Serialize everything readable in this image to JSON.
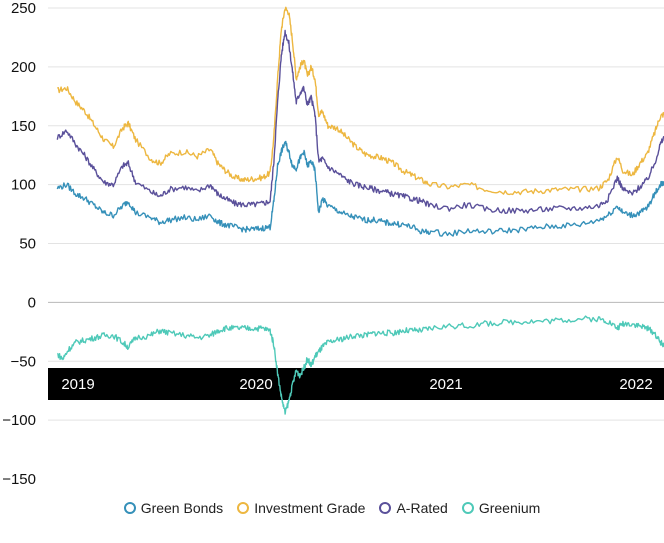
{
  "chart_data": {
    "type": "line",
    "title": "",
    "xlabel": "",
    "ylabel": "",
    "ylim": [
      -150,
      250
    ],
    "yticks": [
      "250",
      "200",
      "150",
      "100",
      "50",
      "0",
      "−50",
      "−100",
      "−150"
    ],
    "xticks": [
      {
        "label": "2019",
        "x": 2019.0
      },
      {
        "label": "2020",
        "x": 2020.0
      },
      {
        "label": "2021",
        "x": 2021.0
      },
      {
        "label": "2022",
        "x": 2022.0
      }
    ],
    "xlim": [
      2018.95,
      2022.25
    ],
    "grid": "horizontal",
    "legend_position": "bottom",
    "series": [
      {
        "name": "Investment Grade",
        "color": "#EDB740",
        "points": [
          [
            2019.0,
            180
          ],
          [
            2019.05,
            182
          ],
          [
            2019.1,
            170
          ],
          [
            2019.15,
            162
          ],
          [
            2019.2,
            150
          ],
          [
            2019.25,
            138
          ],
          [
            2019.3,
            132
          ],
          [
            2019.35,
            148
          ],
          [
            2019.38,
            152
          ],
          [
            2019.42,
            138
          ],
          [
            2019.5,
            122
          ],
          [
            2019.55,
            118
          ],
          [
            2019.6,
            126
          ],
          [
            2019.68,
            128
          ],
          [
            2019.75,
            124
          ],
          [
            2019.82,
            130
          ],
          [
            2019.86,
            118
          ],
          [
            2019.9,
            112
          ],
          [
            2019.95,
            106
          ],
          [
            2020.0,
            104
          ],
          [
            2020.05,
            105
          ],
          [
            2020.1,
            106
          ],
          [
            2020.14,
            110
          ],
          [
            2020.16,
            140
          ],
          [
            2020.18,
            190
          ],
          [
            2020.2,
            232
          ],
          [
            2020.22,
            250
          ],
          [
            2020.24,
            246
          ],
          [
            2020.26,
            222
          ],
          [
            2020.28,
            190
          ],
          [
            2020.3,
            200
          ],
          [
            2020.32,
            206
          ],
          [
            2020.34,
            192
          ],
          [
            2020.36,
            200
          ],
          [
            2020.38,
            190
          ],
          [
            2020.4,
            160
          ],
          [
            2020.42,
            162
          ],
          [
            2020.45,
            150
          ],
          [
            2020.5,
            148
          ],
          [
            2020.55,
            140
          ],
          [
            2020.6,
            132
          ],
          [
            2020.65,
            126
          ],
          [
            2020.7,
            124
          ],
          [
            2020.75,
            122
          ],
          [
            2020.8,
            118
          ],
          [
            2020.85,
            112
          ],
          [
            2020.9,
            108
          ],
          [
            2020.95,
            104
          ],
          [
            2021.0,
            100
          ],
          [
            2021.1,
            98
          ],
          [
            2021.2,
            100
          ],
          [
            2021.3,
            96
          ],
          [
            2021.4,
            94
          ],
          [
            2021.5,
            94
          ],
          [
            2021.6,
            95
          ],
          [
            2021.7,
            96
          ],
          [
            2021.8,
            96
          ],
          [
            2021.9,
            97
          ],
          [
            2021.95,
            104
          ],
          [
            2022.0,
            124
          ],
          [
            2022.03,
            112
          ],
          [
            2022.08,
            108
          ],
          [
            2022.12,
            118
          ],
          [
            2022.16,
            126
          ],
          [
            2022.2,
            144
          ],
          [
            2022.23,
            158
          ],
          [
            2022.25,
            160
          ]
        ]
      },
      {
        "name": "A-Rated",
        "color": "#5A509A",
        "points": [
          [
            2019.0,
            140
          ],
          [
            2019.05,
            146
          ],
          [
            2019.1,
            134
          ],
          [
            2019.15,
            124
          ],
          [
            2019.2,
            112
          ],
          [
            2019.25,
            102
          ],
          [
            2019.3,
            100
          ],
          [
            2019.35,
            116
          ],
          [
            2019.38,
            118
          ],
          [
            2019.42,
            102
          ],
          [
            2019.5,
            94
          ],
          [
            2019.55,
            90
          ],
          [
            2019.6,
            96
          ],
          [
            2019.68,
            98
          ],
          [
            2019.75,
            94
          ],
          [
            2019.82,
            100
          ],
          [
            2019.86,
            92
          ],
          [
            2019.9,
            88
          ],
          [
            2019.95,
            84
          ],
          [
            2020.0,
            83
          ],
          [
            2020.05,
            83
          ],
          [
            2020.1,
            84
          ],
          [
            2020.14,
            86
          ],
          [
            2020.16,
            120
          ],
          [
            2020.18,
            170
          ],
          [
            2020.2,
            210
          ],
          [
            2020.22,
            230
          ],
          [
            2020.24,
            220
          ],
          [
            2020.26,
            196
          ],
          [
            2020.28,
            170
          ],
          [
            2020.3,
            178
          ],
          [
            2020.32,
            182
          ],
          [
            2020.34,
            168
          ],
          [
            2020.36,
            174
          ],
          [
            2020.38,
            160
          ],
          [
            2020.4,
            120
          ],
          [
            2020.42,
            122
          ],
          [
            2020.45,
            115
          ],
          [
            2020.5,
            110
          ],
          [
            2020.55,
            104
          ],
          [
            2020.6,
            100
          ],
          [
            2020.65,
            98
          ],
          [
            2020.7,
            96
          ],
          [
            2020.75,
            94
          ],
          [
            2020.8,
            92
          ],
          [
            2020.85,
            90
          ],
          [
            2020.9,
            88
          ],
          [
            2020.95,
            86
          ],
          [
            2021.0,
            82
          ],
          [
            2021.1,
            80
          ],
          [
            2021.2,
            83
          ],
          [
            2021.3,
            79
          ],
          [
            2021.4,
            78
          ],
          [
            2021.5,
            78
          ],
          [
            2021.6,
            79
          ],
          [
            2021.7,
            80
          ],
          [
            2021.8,
            80
          ],
          [
            2021.9,
            82
          ],
          [
            2021.95,
            88
          ],
          [
            2022.0,
            106
          ],
          [
            2022.03,
            96
          ],
          [
            2022.08,
            92
          ],
          [
            2022.12,
            98
          ],
          [
            2022.16,
            104
          ],
          [
            2022.2,
            118
          ],
          [
            2022.23,
            134
          ],
          [
            2022.25,
            140
          ]
        ]
      },
      {
        "name": "Green Bonds",
        "color": "#3590B9",
        "points": [
          [
            2019.0,
            97
          ],
          [
            2019.05,
            100
          ],
          [
            2019.1,
            92
          ],
          [
            2019.15,
            88
          ],
          [
            2019.2,
            82
          ],
          [
            2019.25,
            76
          ],
          [
            2019.3,
            74
          ],
          [
            2019.35,
            82
          ],
          [
            2019.38,
            86
          ],
          [
            2019.42,
            76
          ],
          [
            2019.5,
            72
          ],
          [
            2019.55,
            68
          ],
          [
            2019.6,
            70
          ],
          [
            2019.68,
            72
          ],
          [
            2019.75,
            70
          ],
          [
            2019.82,
            74
          ],
          [
            2019.86,
            68
          ],
          [
            2019.9,
            66
          ],
          [
            2019.95,
            64
          ],
          [
            2020.0,
            62
          ],
          [
            2020.05,
            62
          ],
          [
            2020.1,
            63
          ],
          [
            2020.14,
            64
          ],
          [
            2020.16,
            86
          ],
          [
            2020.18,
            116
          ],
          [
            2020.2,
            128
          ],
          [
            2020.22,
            136
          ],
          [
            2020.24,
            128
          ],
          [
            2020.26,
            116
          ],
          [
            2020.28,
            114
          ],
          [
            2020.3,
            122
          ],
          [
            2020.32,
            128
          ],
          [
            2020.34,
            116
          ],
          [
            2020.36,
            120
          ],
          [
            2020.38,
            112
          ],
          [
            2020.4,
            76
          ],
          [
            2020.42,
            88
          ],
          [
            2020.45,
            82
          ],
          [
            2020.5,
            78
          ],
          [
            2020.55,
            74
          ],
          [
            2020.6,
            72
          ],
          [
            2020.65,
            70
          ],
          [
            2020.7,
            70
          ],
          [
            2020.75,
            68
          ],
          [
            2020.8,
            67
          ],
          [
            2020.85,
            66
          ],
          [
            2020.9,
            64
          ],
          [
            2020.95,
            60
          ],
          [
            2021.0,
            60
          ],
          [
            2021.1,
            58
          ],
          [
            2021.2,
            61
          ],
          [
            2021.3,
            60
          ],
          [
            2021.4,
            61
          ],
          [
            2021.5,
            62
          ],
          [
            2021.6,
            64
          ],
          [
            2021.7,
            65
          ],
          [
            2021.8,
            66
          ],
          [
            2021.9,
            70
          ],
          [
            2021.95,
            74
          ],
          [
            2022.0,
            82
          ],
          [
            2022.03,
            76
          ],
          [
            2022.08,
            74
          ],
          [
            2022.12,
            76
          ],
          [
            2022.16,
            80
          ],
          [
            2022.2,
            92
          ],
          [
            2022.23,
            100
          ],
          [
            2022.25,
            102
          ]
        ]
      },
      {
        "name": "Greenium",
        "color": "#4EC9B8",
        "points": [
          [
            2019.0,
            -44
          ],
          [
            2019.03,
            -48
          ],
          [
            2019.06,
            -40
          ],
          [
            2019.1,
            -34
          ],
          [
            2019.15,
            -32
          ],
          [
            2019.2,
            -30
          ],
          [
            2019.25,
            -28
          ],
          [
            2019.3,
            -28
          ],
          [
            2019.35,
            -34
          ],
          [
            2019.38,
            -38
          ],
          [
            2019.42,
            -30
          ],
          [
            2019.5,
            -28
          ],
          [
            2019.55,
            -24
          ],
          [
            2019.6,
            -26
          ],
          [
            2019.68,
            -28
          ],
          [
            2019.75,
            -30
          ],
          [
            2019.82,
            -28
          ],
          [
            2019.86,
            -24
          ],
          [
            2019.9,
            -22
          ],
          [
            2019.95,
            -22
          ],
          [
            2020.0,
            -22
          ],
          [
            2020.05,
            -22
          ],
          [
            2020.1,
            -22
          ],
          [
            2020.14,
            -24
          ],
          [
            2020.16,
            -36
          ],
          [
            2020.18,
            -60
          ],
          [
            2020.2,
            -80
          ],
          [
            2020.22,
            -94
          ],
          [
            2020.24,
            -84
          ],
          [
            2020.26,
            -70
          ],
          [
            2020.28,
            -58
          ],
          [
            2020.3,
            -62
          ],
          [
            2020.32,
            -56
          ],
          [
            2020.34,
            -48
          ],
          [
            2020.36,
            -54
          ],
          [
            2020.38,
            -46
          ],
          [
            2020.4,
            -42
          ],
          [
            2020.42,
            -38
          ],
          [
            2020.45,
            -34
          ],
          [
            2020.5,
            -32
          ],
          [
            2020.55,
            -30
          ],
          [
            2020.6,
            -28
          ],
          [
            2020.65,
            -28
          ],
          [
            2020.7,
            -26
          ],
          [
            2020.75,
            -26
          ],
          [
            2020.8,
            -26
          ],
          [
            2020.85,
            -24
          ],
          [
            2020.9,
            -24
          ],
          [
            2020.95,
            -24
          ],
          [
            2021.0,
            -22
          ],
          [
            2021.1,
            -20
          ],
          [
            2021.2,
            -20
          ],
          [
            2021.3,
            -18
          ],
          [
            2021.4,
            -17
          ],
          [
            2021.5,
            -16
          ],
          [
            2021.6,
            -16
          ],
          [
            2021.7,
            -15
          ],
          [
            2021.8,
            -14
          ],
          [
            2021.9,
            -14
          ],
          [
            2021.95,
            -16
          ],
          [
            2022.0,
            -22
          ],
          [
            2022.03,
            -18
          ],
          [
            2022.08,
            -18
          ],
          [
            2022.12,
            -20
          ],
          [
            2022.16,
            -22
          ],
          [
            2022.2,
            -26
          ],
          [
            2022.23,
            -34
          ],
          [
            2022.25,
            -36
          ]
        ]
      }
    ],
    "legend": [
      {
        "name": "Green Bonds",
        "color": "#3590B9"
      },
      {
        "name": "Investment Grade",
        "color": "#EDB740"
      },
      {
        "name": "A-Rated",
        "color": "#5A509A"
      },
      {
        "name": "Greenium",
        "color": "#4EC9B8"
      }
    ]
  }
}
